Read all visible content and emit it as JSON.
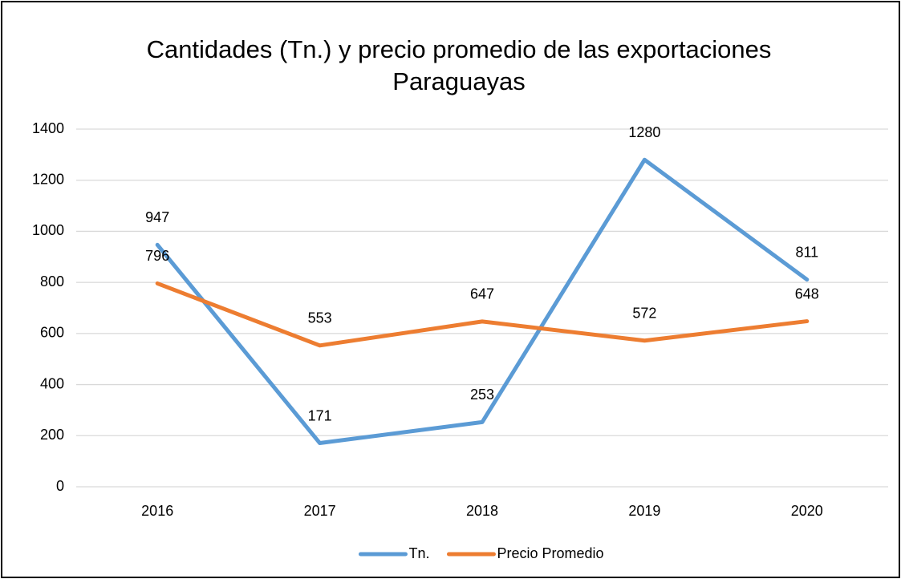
{
  "chart_data": {
    "type": "line",
    "title": "Cantidades (Tn.) y precio promedio de las exportaciones Paraguayas",
    "categories": [
      "2016",
      "2017",
      "2018",
      "2019",
      "2020"
    ],
    "series": [
      {
        "name": "Tn.",
        "color": "#5b9bd5",
        "values": [
          947,
          171,
          253,
          1280,
          811
        ]
      },
      {
        "name": "Precio Promedio",
        "color": "#ed7d31",
        "values": [
          796,
          553,
          647,
          572,
          648
        ]
      }
    ],
    "ylim": [
      0,
      1400
    ],
    "yticks": [
      0,
      200,
      400,
      600,
      800,
      1000,
      1200,
      1400
    ],
    "grid": true,
    "legend": "bottom",
    "data_labels": true
  }
}
